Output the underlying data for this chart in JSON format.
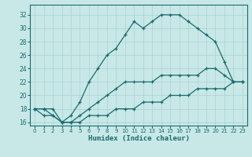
{
  "title": "",
  "xlabel": "Humidex (Indice chaleur)",
  "ylabel": "",
  "bg_color": "#c8e8e8",
  "line_color": "#1a6b6b",
  "xlim": [
    -0.5,
    23.5
  ],
  "ylim": [
    15.5,
    33.5
  ],
  "xticks": [
    0,
    1,
    2,
    3,
    4,
    5,
    6,
    7,
    8,
    9,
    10,
    11,
    12,
    13,
    14,
    15,
    16,
    17,
    18,
    19,
    20,
    21,
    22,
    23
  ],
  "yticks": [
    16,
    18,
    20,
    22,
    24,
    26,
    28,
    30,
    32
  ],
  "grid_color": "#b0d4d4",
  "line1_x": [
    0,
    1,
    2,
    3,
    4,
    5,
    6,
    7,
    8,
    9,
    10,
    11,
    12,
    13,
    14,
    15,
    16,
    17,
    18,
    19,
    20,
    21,
    22,
    23
  ],
  "line1_y": [
    18,
    18,
    18,
    16,
    17,
    19,
    22,
    24,
    26,
    27,
    29,
    31,
    30,
    31,
    32,
    32,
    32,
    31,
    30,
    29,
    28,
    25,
    22,
    22
  ],
  "line2_x": [
    0,
    1,
    2,
    3,
    4,
    5,
    6,
    7,
    8,
    9,
    10,
    11,
    12,
    13,
    14,
    15,
    16,
    17,
    18,
    19,
    20,
    21,
    22,
    23
  ],
  "line2_y": [
    18,
    18,
    17,
    16,
    16,
    17,
    18,
    19,
    20,
    21,
    22,
    22,
    22,
    22,
    23,
    23,
    23,
    23,
    23,
    24,
    24,
    23,
    22,
    22
  ],
  "line3_x": [
    0,
    1,
    2,
    3,
    4,
    5,
    6,
    7,
    8,
    9,
    10,
    11,
    12,
    13,
    14,
    15,
    16,
    17,
    18,
    19,
    20,
    21,
    22,
    23
  ],
  "line3_y": [
    18,
    17,
    17,
    16,
    16,
    16,
    17,
    17,
    17,
    18,
    18,
    18,
    19,
    19,
    19,
    20,
    20,
    20,
    21,
    21,
    21,
    21,
    22,
    22
  ]
}
